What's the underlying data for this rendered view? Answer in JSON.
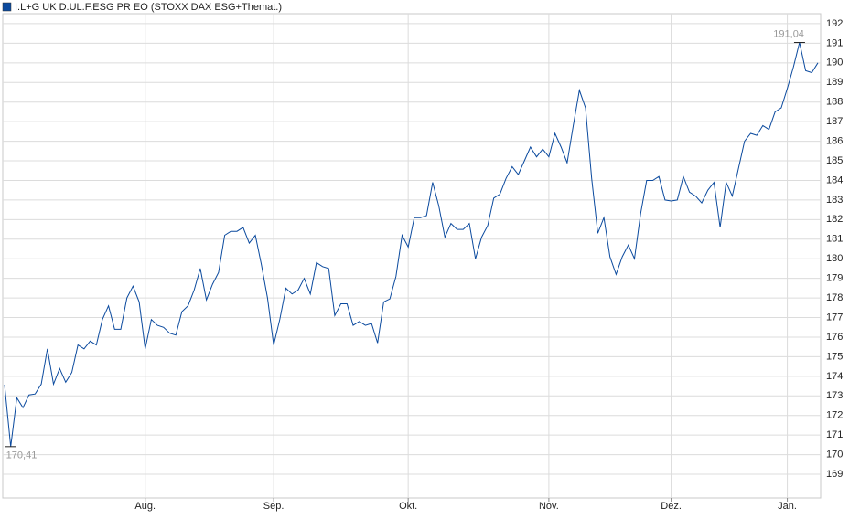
{
  "chart_data": {
    "type": "line",
    "categories": [
      null,
      null,
      null,
      null,
      null,
      null,
      null,
      null,
      null,
      null,
      null,
      null,
      null,
      null,
      null,
      null,
      null,
      null,
      null,
      null,
      null,
      null,
      null,
      "Aug.",
      null,
      null,
      null,
      null,
      null,
      null,
      null,
      null,
      null,
      null,
      null,
      null,
      null,
      null,
      null,
      null,
      null,
      null,
      null,
      null,
      "Sep.",
      null,
      null,
      null,
      null,
      null,
      null,
      null,
      null,
      null,
      null,
      null,
      null,
      null,
      null,
      null,
      null,
      null,
      null,
      null,
      null,
      null,
      "Okt.",
      null,
      null,
      null,
      null,
      null,
      null,
      null,
      null,
      null,
      null,
      null,
      null,
      null,
      null,
      null,
      null,
      null,
      null,
      null,
      null,
      null,
      null,
      "Nov.",
      null,
      null,
      null,
      null,
      null,
      null,
      null,
      null,
      null,
      null,
      null,
      null,
      null,
      null,
      null,
      null,
      null,
      null,
      null,
      "Dez.",
      null,
      null,
      null,
      null,
      null,
      null,
      null,
      null,
      null,
      null,
      null,
      null,
      null,
      null,
      null,
      null,
      null,
      null,
      "Jan.",
      null,
      null,
      null,
      null,
      null
    ],
    "series": [
      {
        "name": "I.L+G UK D.UL.F.ESG PR EO (STOXX DAX ESG+Themat.)",
        "color": "#0b4a9e",
        "values": [
          173.57,
          170.41,
          172.9,
          172.4,
          173.05,
          173.1,
          173.6,
          175.4,
          173.6,
          174.4,
          173.7,
          174.2,
          175.6,
          175.4,
          175.8,
          175.6,
          176.9,
          177.6,
          176.4,
          176.4,
          178.0,
          178.6,
          177.8,
          175.4,
          176.9,
          176.6,
          176.5,
          176.2,
          176.1,
          177.3,
          177.6,
          178.4,
          179.5,
          177.9,
          178.7,
          179.3,
          181.2,
          181.4,
          181.4,
          181.6,
          180.8,
          181.2,
          179.7,
          178.0,
          175.6,
          176.9,
          178.5,
          178.2,
          178.4,
          179.0,
          178.2,
          179.8,
          179.6,
          179.5,
          177.1,
          177.7,
          177.7,
          176.6,
          176.8,
          176.6,
          176.7,
          175.7,
          177.8,
          177.95,
          179.1,
          181.2,
          180.6,
          182.1,
          182.1,
          182.2,
          183.9,
          182.7,
          181.1,
          181.8,
          181.5,
          181.5,
          181.8,
          180.0,
          181.1,
          181.7,
          183.1,
          183.3,
          184.1,
          184.7,
          184.3,
          185.0,
          185.7,
          185.2,
          185.6,
          185.2,
          186.4,
          185.7,
          184.9,
          186.8,
          188.6,
          187.7,
          184.1,
          181.3,
          182.1,
          180.1,
          179.2,
          180.1,
          180.7,
          180.0,
          182.3,
          184.0,
          184.0,
          184.2,
          183.0,
          182.95,
          183.0,
          184.2,
          183.4,
          183.2,
          182.85,
          183.5,
          183.9,
          181.6,
          183.9,
          183.2,
          184.6,
          186.0,
          186.4,
          186.3,
          186.8,
          186.6,
          187.5,
          187.7,
          188.7,
          189.8,
          191.04,
          189.6,
          189.5,
          190.0
        ],
        "value_labels": [
          null,
          "170,41",
          null,
          null,
          null,
          null,
          null,
          null,
          null,
          null,
          null,
          null,
          null,
          null,
          null,
          null,
          null,
          null,
          null,
          null,
          null,
          null,
          null,
          null,
          null,
          null,
          null,
          null,
          null,
          null,
          null,
          null,
          null,
          null,
          null,
          null,
          null,
          null,
          null,
          null,
          null,
          null,
          null,
          null,
          null,
          null,
          null,
          null,
          null,
          null,
          null,
          null,
          null,
          null,
          null,
          null,
          null,
          null,
          null,
          null,
          null,
          null,
          null,
          null,
          null,
          null,
          null,
          null,
          null,
          null,
          null,
          null,
          null,
          null,
          null,
          null,
          null,
          null,
          null,
          null,
          null,
          null,
          null,
          null,
          null,
          null,
          null,
          null,
          null,
          null,
          null,
          null,
          null,
          null,
          null,
          null,
          null,
          null,
          null,
          null,
          null,
          null,
          null,
          null,
          null,
          null,
          null,
          null,
          null,
          null,
          null,
          null,
          null,
          null,
          null,
          null,
          null,
          null,
          null,
          null,
          null,
          null,
          null,
          null,
          null,
          null,
          null,
          null,
          null,
          null,
          "191,04",
          null,
          null,
          null
        ]
      }
    ],
    "ylim": [
      167.79,
      192.51
    ],
    "yticks": [
      169,
      170,
      171,
      172,
      173,
      174,
      175,
      176,
      177,
      178,
      179,
      180,
      181,
      182,
      183,
      184,
      185,
      186,
      187,
      188,
      189,
      190,
      191,
      192
    ],
    "grid": true
  }
}
